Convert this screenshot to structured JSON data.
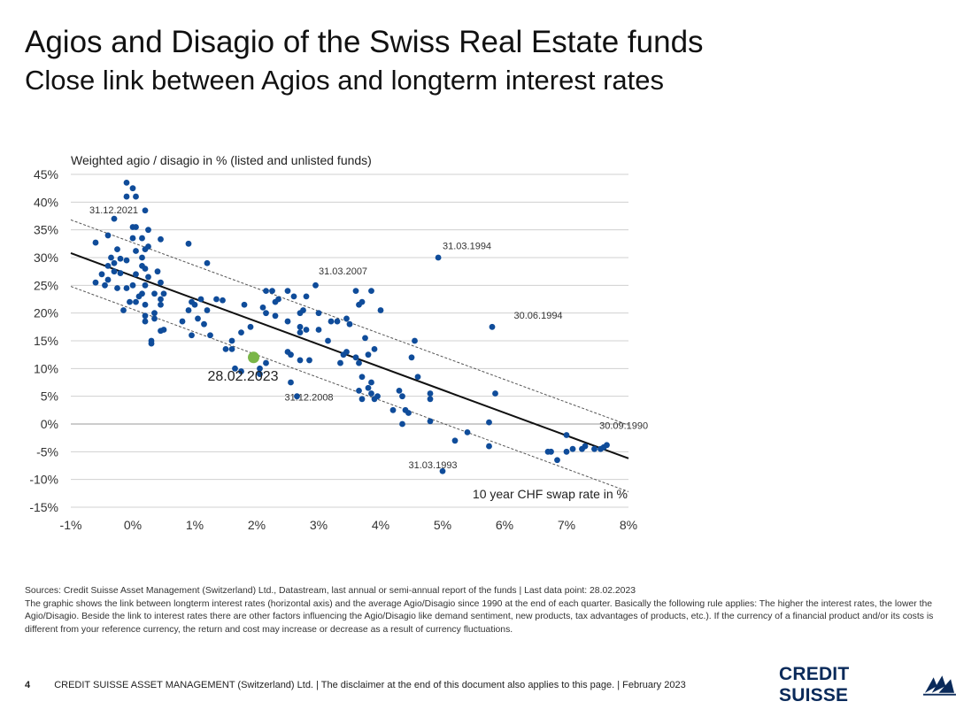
{
  "header": {
    "title": "Agios and Disagio of the Swiss Real Estate funds",
    "subtitle": "Close link between Agios and longterm interest rates"
  },
  "chart_data": {
    "type": "scatter",
    "ylabel": "Weighted agio / disagio in % (listed and unlisted funds)",
    "xlabel": "10 year CHF swap rate in %",
    "xlim": [
      -1,
      8
    ],
    "ylim": [
      -15,
      45
    ],
    "x_ticks": [
      -1,
      0,
      1,
      2,
      3,
      4,
      5,
      6,
      7,
      8
    ],
    "x_tick_labels": [
      "-1%",
      "0%",
      "1%",
      "2%",
      "3%",
      "4%",
      "5%",
      "6%",
      "7%",
      "8%"
    ],
    "y_ticks": [
      45,
      40,
      35,
      30,
      25,
      20,
      15,
      10,
      5,
      0,
      -5,
      -10,
      -15
    ],
    "y_tick_labels": [
      "45%",
      "40%",
      "35%",
      "30%",
      "25%",
      "20%",
      "15%",
      "10%",
      "5%",
      "0%",
      "-5%",
      "-10%",
      "-15%"
    ],
    "gridlines": true,
    "point_color": "#0f4c9a",
    "highlight_color": "#7ab648",
    "trend_color": "#111111",
    "trend_line": {
      "x": [
        -1,
        8
      ],
      "y": [
        30.8,
        -6.2
      ]
    },
    "upper_band": {
      "x": [
        -1,
        8
      ],
      "y": [
        36.8,
        -0.2
      ]
    },
    "lower_band": {
      "x": [
        -1,
        8
      ],
      "y": [
        24.8,
        -12.2
      ]
    },
    "points": [
      [
        -0.1,
        43.5
      ],
      [
        0.0,
        42.5
      ],
      [
        -0.1,
        41.0
      ],
      [
        0.05,
        41.0
      ],
      [
        0.2,
        38.5
      ],
      [
        -0.3,
        37.0
      ],
      [
        0.0,
        35.5
      ],
      [
        0.05,
        35.5
      ],
      [
        0.25,
        35.0
      ],
      [
        -0.4,
        34.0
      ],
      [
        0.0,
        33.5
      ],
      [
        0.15,
        33.5
      ],
      [
        0.45,
        33.3
      ],
      [
        -0.6,
        32.7
      ],
      [
        -0.25,
        31.5
      ],
      [
        0.05,
        31.2
      ],
      [
        0.2,
        31.5
      ],
      [
        0.25,
        32.0
      ],
      [
        -0.35,
        30.0
      ],
      [
        -0.2,
        29.8
      ],
      [
        -0.1,
        29.5
      ],
      [
        0.15,
        30.0
      ],
      [
        -0.3,
        29.0
      ],
      [
        -0.4,
        28.5
      ],
      [
        0.15,
        28.5
      ],
      [
        0.2,
        28.0
      ],
      [
        -0.5,
        27.0
      ],
      [
        -0.3,
        27.5
      ],
      [
        -0.2,
        27.2
      ],
      [
        0.05,
        27.0
      ],
      [
        0.25,
        26.5
      ],
      [
        0.4,
        27.5
      ],
      [
        -0.4,
        26.0
      ],
      [
        -0.6,
        25.5
      ],
      [
        -0.45,
        25.0
      ],
      [
        -0.25,
        24.5
      ],
      [
        -0.1,
        24.5
      ],
      [
        0.0,
        25.0
      ],
      [
        0.2,
        25.0
      ],
      [
        0.45,
        25.5
      ],
      [
        0.15,
        23.5
      ],
      [
        0.35,
        23.5
      ],
      [
        0.5,
        23.5
      ],
      [
        0.1,
        23.0
      ],
      [
        -0.05,
        22.0
      ],
      [
        0.05,
        22.0
      ],
      [
        0.45,
        22.5
      ],
      [
        0.2,
        21.5
      ],
      [
        0.45,
        21.5
      ],
      [
        0.35,
        20.0
      ],
      [
        -0.15,
        20.5
      ],
      [
        0.2,
        19.5
      ],
      [
        0.35,
        19.0
      ],
      [
        0.2,
        18.5
      ],
      [
        0.5,
        17.0
      ],
      [
        0.45,
        16.8
      ],
      [
        0.3,
        15.0
      ],
      [
        0.3,
        14.5
      ],
      [
        0.9,
        32.5
      ],
      [
        1.2,
        29.0
      ],
      [
        0.95,
        22.0
      ],
      [
        1.1,
        22.5
      ],
      [
        1.0,
        21.5
      ],
      [
        0.9,
        20.5
      ],
      [
        1.2,
        20.5
      ],
      [
        0.8,
        18.5
      ],
      [
        1.05,
        19.0
      ],
      [
        1.15,
        18.0
      ],
      [
        0.95,
        16.0
      ],
      [
        1.25,
        16.0
      ],
      [
        1.35,
        22.5
      ],
      [
        1.45,
        22.3
      ],
      [
        1.8,
        21.5
      ],
      [
        1.5,
        13.5
      ],
      [
        1.6,
        15.0
      ],
      [
        1.6,
        13.5
      ],
      [
        1.75,
        16.5
      ],
      [
        1.9,
        17.5
      ],
      [
        1.65,
        10.0
      ],
      [
        1.75,
        9.5
      ],
      [
        2.15,
        24.0
      ],
      [
        2.25,
        24.0
      ],
      [
        2.3,
        22.0
      ],
      [
        2.1,
        21.0
      ],
      [
        2.35,
        22.5
      ],
      [
        2.5,
        24.0
      ],
      [
        2.6,
        23.0
      ],
      [
        2.8,
        23.0
      ],
      [
        2.95,
        25.0
      ],
      [
        2.15,
        20.0
      ],
      [
        2.3,
        19.5
      ],
      [
        2.5,
        18.5
      ],
      [
        2.7,
        20.0
      ],
      [
        2.75,
        20.5
      ],
      [
        2.8,
        17.0
      ],
      [
        2.7,
        17.5
      ],
      [
        2.7,
        16.5
      ],
      [
        3.0,
        20.0
      ],
      [
        3.0,
        17.0
      ],
      [
        3.2,
        18.5
      ],
      [
        3.3,
        18.5
      ],
      [
        3.45,
        19.0
      ],
      [
        3.5,
        18.0
      ],
      [
        3.15,
        15.0
      ],
      [
        2.5,
        13.0
      ],
      [
        2.55,
        12.5
      ],
      [
        2.7,
        11.5
      ],
      [
        2.85,
        11.5
      ],
      [
        2.15,
        11.0
      ],
      [
        2.05,
        10.0
      ],
      [
        2.05,
        9.0
      ],
      [
        2.55,
        7.5
      ],
      [
        2.65,
        5.0
      ],
      [
        3.6,
        24.0
      ],
      [
        3.85,
        24.0
      ],
      [
        3.65,
        21.5
      ],
      [
        3.7,
        22.0
      ],
      [
        4.0,
        20.5
      ],
      [
        3.75,
        15.5
      ],
      [
        3.9,
        13.5
      ],
      [
        3.4,
        12.5
      ],
      [
        3.45,
        13.0
      ],
      [
        3.6,
        12.0
      ],
      [
        3.8,
        12.5
      ],
      [
        3.65,
        11.0
      ],
      [
        3.35,
        11.0
      ],
      [
        3.7,
        8.5
      ],
      [
        3.85,
        7.5
      ],
      [
        3.8,
        6.5
      ],
      [
        3.65,
        6.0
      ],
      [
        3.85,
        5.5
      ],
      [
        3.95,
        5.0
      ],
      [
        3.9,
        4.5
      ],
      [
        3.7,
        4.5
      ],
      [
        4.55,
        15.0
      ],
      [
        4.5,
        12.0
      ],
      [
        4.6,
        8.5
      ],
      [
        4.3,
        6.0
      ],
      [
        4.35,
        5.0
      ],
      [
        4.2,
        2.5
      ],
      [
        4.4,
        2.5
      ],
      [
        4.45,
        2.0
      ],
      [
        4.35,
        0.0
      ],
      [
        4.8,
        5.5
      ],
      [
        4.8,
        4.5
      ],
      [
        4.8,
        0.5
      ],
      [
        4.93,
        30.0
      ],
      [
        5.4,
        -1.5
      ],
      [
        5.2,
        -3.0
      ],
      [
        5.8,
        17.5
      ],
      [
        5.85,
        5.5
      ],
      [
        5.75,
        0.3
      ],
      [
        5.75,
        -4.0
      ],
      [
        5.0,
        -8.5
      ],
      [
        6.7,
        -5.0
      ],
      [
        6.85,
        -6.5
      ],
      [
        6.75,
        -5.0
      ],
      [
        7.0,
        -5.0
      ],
      [
        7.0,
        -2.0
      ],
      [
        7.1,
        -4.5
      ],
      [
        7.25,
        -4.5
      ],
      [
        7.3,
        -4.0
      ],
      [
        7.45,
        -4.5
      ],
      [
        7.55,
        -4.5
      ],
      [
        7.6,
        -4.2
      ],
      [
        7.65,
        -3.8
      ]
    ],
    "highlight_point": {
      "x": 1.95,
      "y": 12.0,
      "label": "28.02.2023"
    },
    "annotations": [
      {
        "x": -0.7,
        "y": 38.0,
        "label": "31.12.2021"
      },
      {
        "x": 3.0,
        "y": 27.0,
        "label": "31.03.2007"
      },
      {
        "x": 5.0,
        "y": 31.5,
        "label": "31.03.1994"
      },
      {
        "x": 6.15,
        "y": 19.0,
        "label": "30.06.1994"
      },
      {
        "x": 2.45,
        "y": 4.2,
        "label": "31.12.2008"
      },
      {
        "x": 4.45,
        "y": -8.0,
        "label": "31.03.1993"
      },
      {
        "x": 7.53,
        "y": -0.9,
        "label": "30.09.1990"
      }
    ]
  },
  "sources": {
    "line1": "Sources: Credit Suisse Asset Management (Switzerland) Ltd., Datastream, last annual or semi-annual report of the funds | Last data point: 28.02.2023",
    "line2": "The graphic shows the link between longterm interest rates (horizontal axis) and the average Agio/Disagio since 1990 at the end of each quarter. Basically the following rule applies: The higher the interest rates, the lower the Agio/Disagio. Beside the link to interest rates there are other factors influencing the Agio/Disagio like demand sentiment, new products, tax advantages of products, etc.). If the currency of a financial product and/or its costs is different from your reference currency, the return and cost may increase or decrease as a result of currency fluctuations."
  },
  "footer": {
    "page_number": "4",
    "text": "CREDIT SUISSE ASSET MANAGEMENT (Switzerland) Ltd. | The disclaimer at the end of this document also applies to this page. | February 2023",
    "logo_text": "CREDIT SUISSE"
  }
}
